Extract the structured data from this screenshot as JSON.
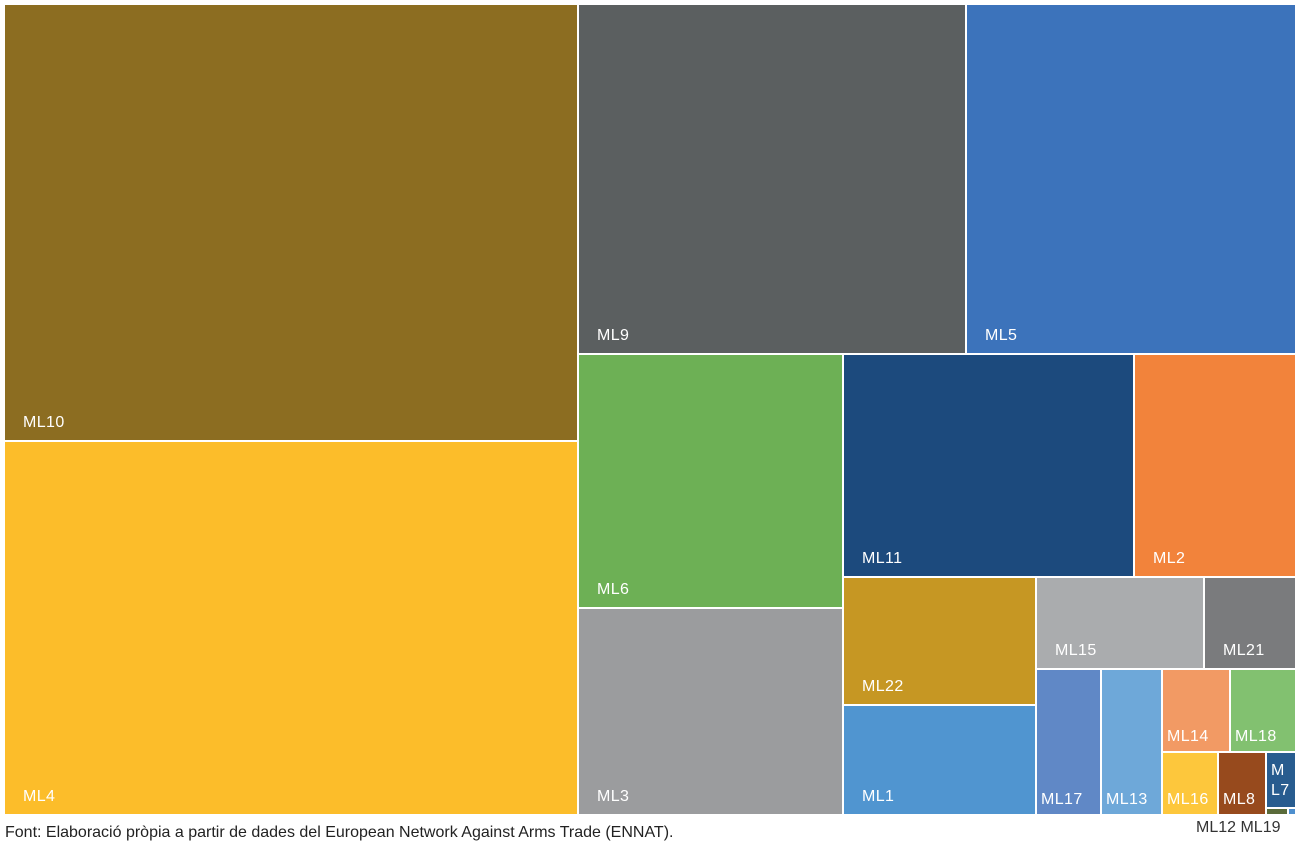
{
  "chart_data": {
    "type": "treemap",
    "items": [
      {
        "name": "ML10",
        "value": 24.77,
        "color": "#8c6d21"
      },
      {
        "name": "ML4",
        "value": 21.35,
        "color": "#fcbd2a"
      },
      {
        "name": "ML9",
        "value": 12.73,
        "color": "#5b5f60"
      },
      {
        "name": "ML5",
        "value": 10.77,
        "color": "#3c73bb"
      },
      {
        "name": "ML6",
        "value": 5.11,
        "color": "#6db055"
      },
      {
        "name": "ML3",
        "value": 4.05,
        "color": "#9b9c9e"
      },
      {
        "name": "ML11",
        "value": 6.2,
        "color": "#1c4a7d"
      },
      {
        "name": "ML2",
        "value": 3.4,
        "color": "#f2833b"
      },
      {
        "name": "ML22",
        "value": 1.95,
        "color": "#c69723"
      },
      {
        "name": "ML1",
        "value": 1.6,
        "color": "#5095d0"
      },
      {
        "name": "ML15",
        "value": 1.09,
        "color": "#aaacae"
      },
      {
        "name": "ML21",
        "value": 0.61,
        "color": "#7a7b7d"
      },
      {
        "name": "ML17",
        "value": 0.71,
        "color": "#6088c6"
      },
      {
        "name": "ML13",
        "value": 0.65,
        "color": "#6ea8d9"
      },
      {
        "name": "ML14",
        "value": 0.38,
        "color": "#f29a64"
      },
      {
        "name": "ML18",
        "value": 0.36,
        "color": "#82c170"
      },
      {
        "name": "ML16",
        "value": 0.26,
        "color": "#fdc73c"
      },
      {
        "name": "ML8",
        "value": 0.21,
        "color": "#974a1d"
      },
      {
        "name": "ML7",
        "value": 0.12,
        "color": "#285c8f"
      },
      {
        "name": "ML12",
        "value": 0.02,
        "color": "#5a6b3a"
      },
      {
        "name": "ML19",
        "value": 0.01,
        "color": "#4e8fce"
      }
    ],
    "outside_labels": [
      "ML12 ML19"
    ]
  },
  "source": "Font: Elaboració pròpia a partir de dades del European Network Against Arms Trade (ENNAT)."
}
